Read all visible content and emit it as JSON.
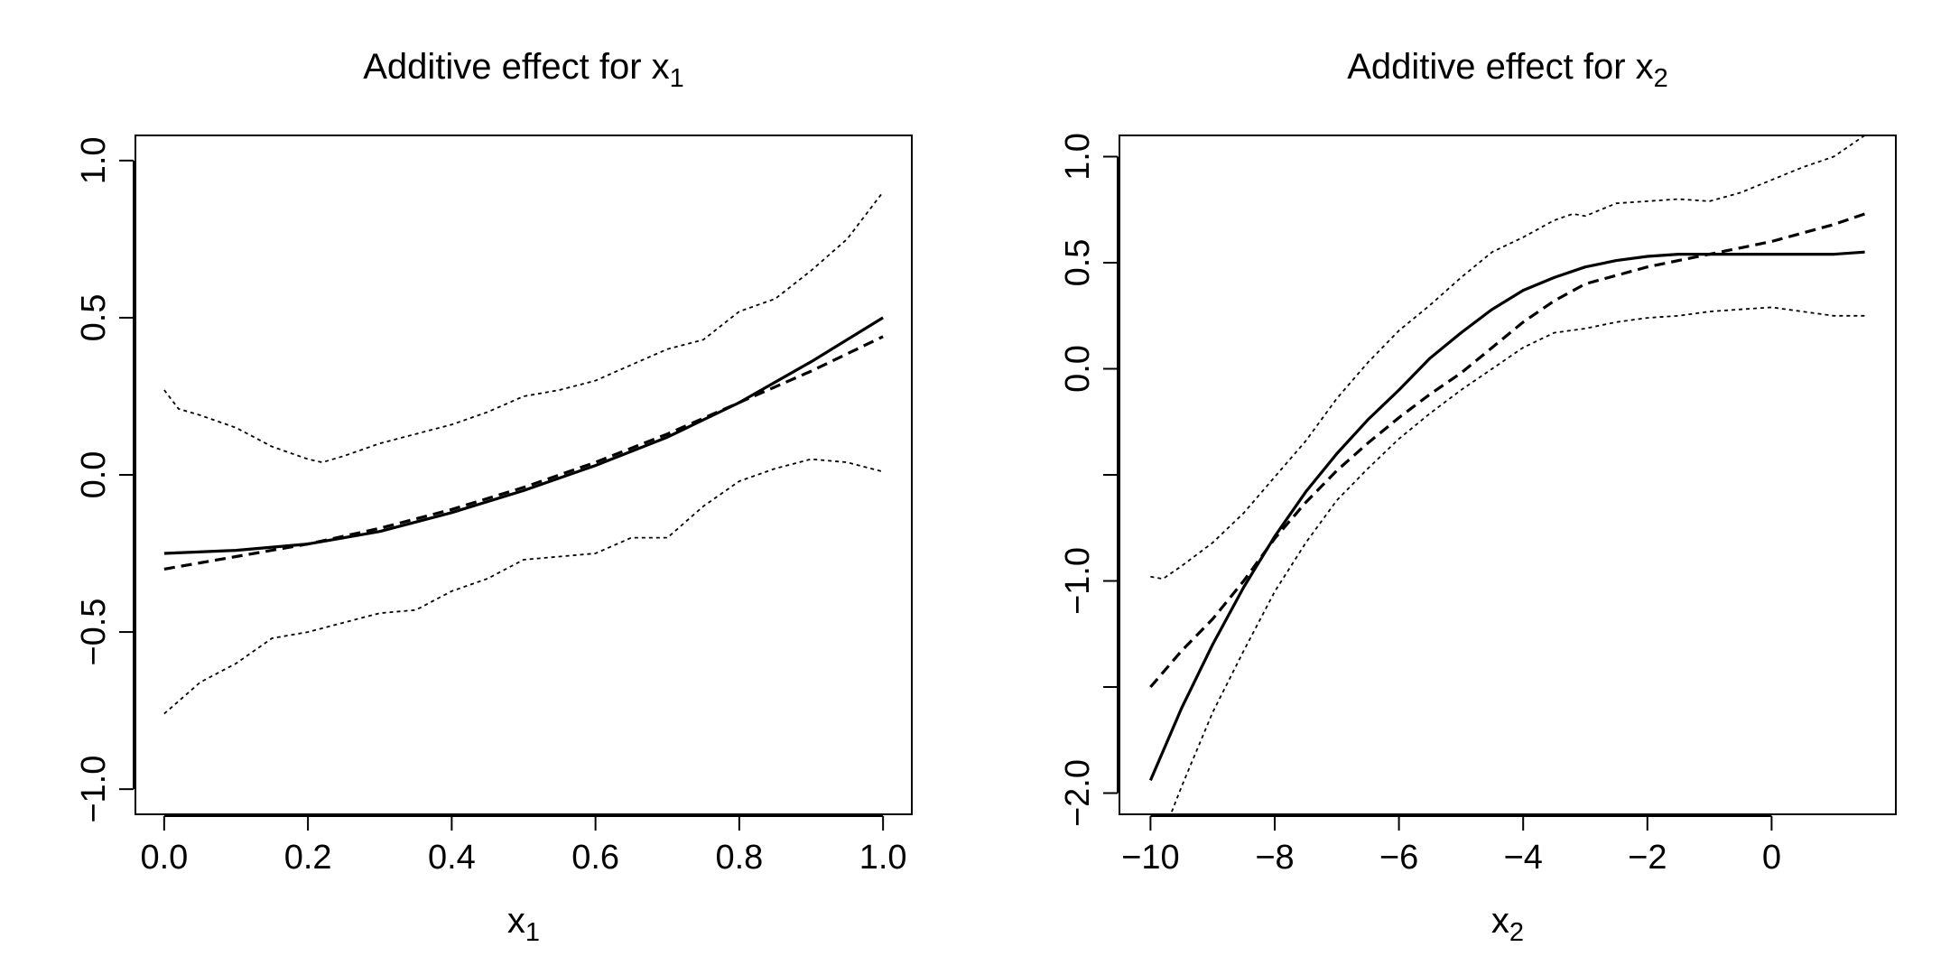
{
  "chart_data": [
    {
      "type": "line",
      "title": "Additive effect for x",
      "title_sub": "1",
      "xlabel": "x",
      "xlabel_sub": "1",
      "ylabel": "",
      "xlim": [
        -0.04,
        1.04
      ],
      "ylim": [
        -1.08,
        1.08
      ],
      "xticks": [
        0.0,
        0.2,
        0.4,
        0.6,
        0.8,
        1.0
      ],
      "xtick_labels": [
        "0.0",
        "0.2",
        "0.4",
        "0.6",
        "0.8",
        "1.0"
      ],
      "yticks": [
        -1.0,
        -0.5,
        0.0,
        0.5,
        1.0
      ],
      "ytick_labels": [
        "−1.0",
        "−0.5",
        "0.0",
        "0.5",
        "1.0"
      ],
      "grid": false,
      "legend": "none",
      "series": [
        {
          "style": "solid",
          "x": [
            0.0,
            0.1,
            0.2,
            0.3,
            0.4,
            0.5,
            0.6,
            0.7,
            0.8,
            0.9,
            1.0
          ],
          "y": [
            -0.25,
            -0.24,
            -0.22,
            -0.18,
            -0.12,
            -0.05,
            0.03,
            0.12,
            0.23,
            0.36,
            0.5
          ]
        },
        {
          "style": "dashed",
          "x": [
            0.0,
            0.1,
            0.2,
            0.3,
            0.4,
            0.5,
            0.6,
            0.7,
            0.8,
            0.9,
            1.0
          ],
          "y": [
            -0.3,
            -0.26,
            -0.22,
            -0.17,
            -0.11,
            -0.04,
            0.04,
            0.13,
            0.23,
            0.33,
            0.44
          ]
        },
        {
          "style": "dotted",
          "x": [
            0.0,
            0.02,
            0.05,
            0.1,
            0.15,
            0.2,
            0.22,
            0.25,
            0.3,
            0.35,
            0.4,
            0.45,
            0.5,
            0.55,
            0.6,
            0.65,
            0.7,
            0.75,
            0.8,
            0.85,
            0.9,
            0.95,
            1.0
          ],
          "y": [
            0.27,
            0.21,
            0.19,
            0.15,
            0.09,
            0.05,
            0.04,
            0.06,
            0.1,
            0.13,
            0.16,
            0.2,
            0.25,
            0.27,
            0.3,
            0.35,
            0.4,
            0.43,
            0.52,
            0.56,
            0.65,
            0.75,
            0.9
          ]
        },
        {
          "style": "dotted",
          "x": [
            0.0,
            0.05,
            0.1,
            0.15,
            0.2,
            0.25,
            0.3,
            0.35,
            0.4,
            0.45,
            0.5,
            0.55,
            0.6,
            0.65,
            0.7,
            0.75,
            0.8,
            0.85,
            0.9,
            0.95,
            1.0
          ],
          "y": [
            -0.76,
            -0.66,
            -0.6,
            -0.52,
            -0.5,
            -0.47,
            -0.44,
            -0.43,
            -0.37,
            -0.33,
            -0.27,
            -0.26,
            -0.25,
            -0.2,
            -0.2,
            -0.1,
            -0.02,
            0.02,
            0.05,
            0.04,
            0.01
          ]
        }
      ]
    },
    {
      "type": "line",
      "title": "Additive effect for x",
      "title_sub": "2",
      "xlabel": "x",
      "xlabel_sub": "2",
      "ylabel": "",
      "xlim": [
        -10.5,
        2.0
      ],
      "ylim": [
        -2.1,
        1.1
      ],
      "xticks": [
        -10,
        -8,
        -6,
        -4,
        -2,
        0
      ],
      "xtick_labels": [
        "−10",
        "−8",
        "−6",
        "−4",
        "−2",
        "0"
      ],
      "yticks": [
        -2.0,
        -1.5,
        -1.0,
        -0.5,
        0.0,
        0.5,
        1.0
      ],
      "ytick_labels": [
        "−2.0",
        "",
        "−1.0",
        "",
        "0.0",
        "0.5",
        "1.0"
      ],
      "grid": false,
      "legend": "none",
      "series": [
        {
          "style": "solid",
          "x": [
            -10,
            -9.5,
            -9,
            -8.5,
            -8,
            -7.5,
            -7,
            -6.5,
            -6,
            -5.5,
            -5,
            -4.5,
            -4,
            -3.5,
            -3,
            -2.5,
            -2,
            -1.5,
            -1,
            -0.5,
            0,
            0.5,
            1,
            1.5
          ],
          "y": [
            -1.94,
            -1.6,
            -1.3,
            -1.03,
            -0.79,
            -0.58,
            -0.4,
            -0.24,
            -0.1,
            0.05,
            0.17,
            0.28,
            0.37,
            0.43,
            0.48,
            0.51,
            0.53,
            0.54,
            0.54,
            0.54,
            0.54,
            0.54,
            0.54,
            0.55
          ]
        },
        {
          "style": "dashed",
          "x": [
            -10,
            -9.5,
            -9,
            -8.5,
            -8,
            -7.5,
            -7,
            -6.5,
            -6,
            -5.5,
            -5,
            -4.5,
            -4,
            -3.5,
            -3,
            -2.5,
            -2,
            -1.5,
            -1,
            -0.5,
            0,
            0.5,
            1,
            1.5
          ],
          "y": [
            -1.5,
            -1.33,
            -1.18,
            -1.0,
            -0.8,
            -0.63,
            -0.48,
            -0.35,
            -0.23,
            -0.12,
            -0.02,
            0.1,
            0.22,
            0.32,
            0.4,
            0.44,
            0.48,
            0.51,
            0.54,
            0.57,
            0.6,
            0.64,
            0.68,
            0.73
          ]
        },
        {
          "style": "dotted",
          "x": [
            -10,
            -9.8,
            -9.5,
            -9,
            -8.5,
            -8,
            -7.5,
            -7,
            -6.5,
            -6,
            -5.5,
            -5,
            -4.5,
            -4,
            -3.5,
            -3.2,
            -3,
            -2.5,
            -2,
            -1.5,
            -1,
            -0.5,
            0,
            0.5,
            1,
            1.5
          ],
          "y": [
            -0.98,
            -0.99,
            -0.93,
            -0.82,
            -0.68,
            -0.51,
            -0.34,
            -0.14,
            0.03,
            0.18,
            0.3,
            0.43,
            0.55,
            0.62,
            0.7,
            0.73,
            0.72,
            0.78,
            0.79,
            0.8,
            0.79,
            0.83,
            0.89,
            0.95,
            1.0,
            1.1
          ]
        },
        {
          "style": "dotted",
          "x": [
            -9.7,
            -9.5,
            -9,
            -8.5,
            -8,
            -7.5,
            -7,
            -6.5,
            -6,
            -5.5,
            -5,
            -4.5,
            -4,
            -3.5,
            -3,
            -2.5,
            -2,
            -1.5,
            -1,
            -0.5,
            0,
            0.5,
            1,
            1.5
          ],
          "y": [
            -2.12,
            -1.97,
            -1.62,
            -1.33,
            -1.05,
            -0.82,
            -0.62,
            -0.47,
            -0.33,
            -0.21,
            -0.1,
            0.0,
            0.1,
            0.17,
            0.19,
            0.22,
            0.24,
            0.25,
            0.27,
            0.28,
            0.29,
            0.27,
            0.25,
            0.25
          ]
        }
      ]
    }
  ]
}
